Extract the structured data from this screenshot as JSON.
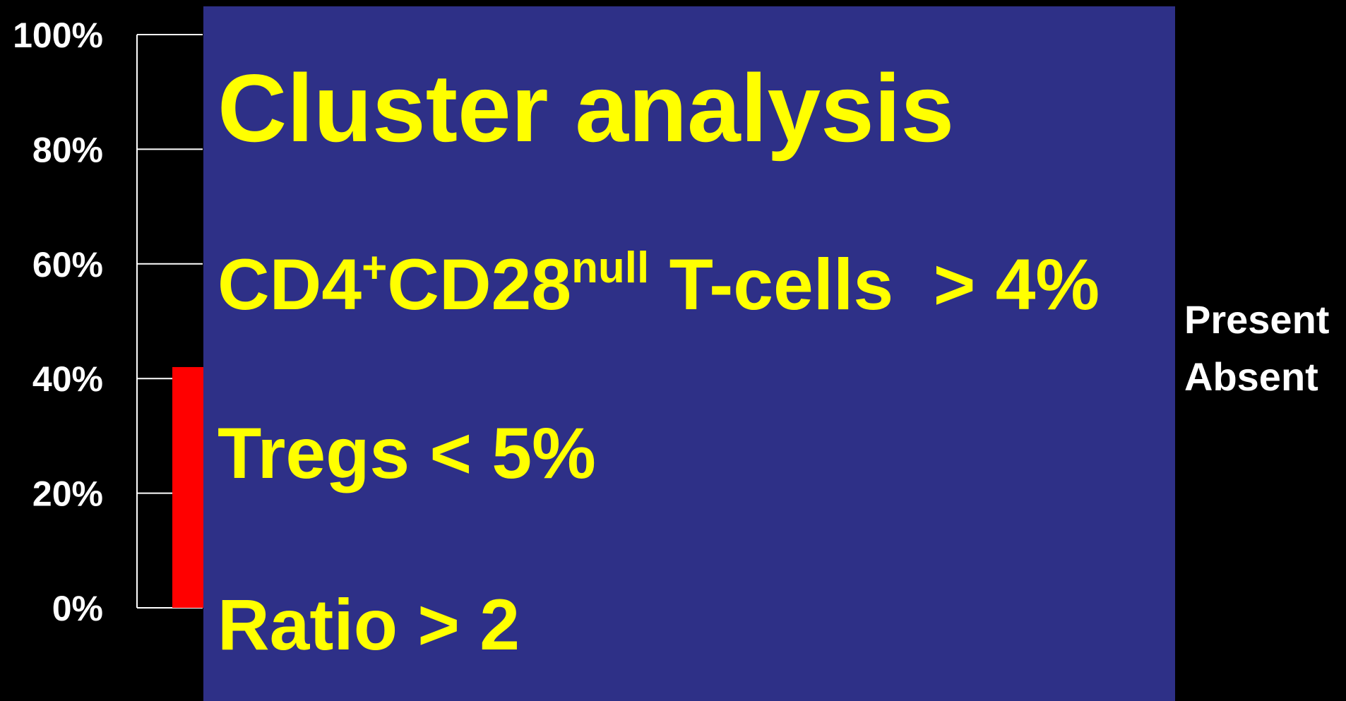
{
  "chart_data": {
    "type": "bar",
    "categories": [
      null
    ],
    "series": [
      {
        "name": "Present",
        "color": "#ff0000",
        "values": [
          42
        ]
      },
      {
        "name": "Absent",
        "values": [
          null
        ]
      }
    ],
    "ylim": [
      0,
      100
    ],
    "yticks": [
      {
        "value": 0,
        "label": "0%"
      },
      {
        "value": 20,
        "label": "20%"
      },
      {
        "value": 40,
        "label": "40%"
      },
      {
        "value": 60,
        "label": "60%"
      },
      {
        "value": 80,
        "label": "80%"
      },
      {
        "value": 100,
        "label": "100%"
      }
    ],
    "legend": "right"
  },
  "overlay": {
    "title": "Cluster analysis",
    "lines": [
      [
        {
          "text": "CD4"
        },
        {
          "text": "+",
          "sup": true
        },
        {
          "text": "CD28"
        },
        {
          "text": "null",
          "sup": true
        },
        {
          "text": " T-cells  > 4%"
        }
      ],
      [
        {
          "text": "Tregs < 5%"
        }
      ],
      [
        {
          "text": "Ratio > 2"
        }
      ]
    ]
  }
}
